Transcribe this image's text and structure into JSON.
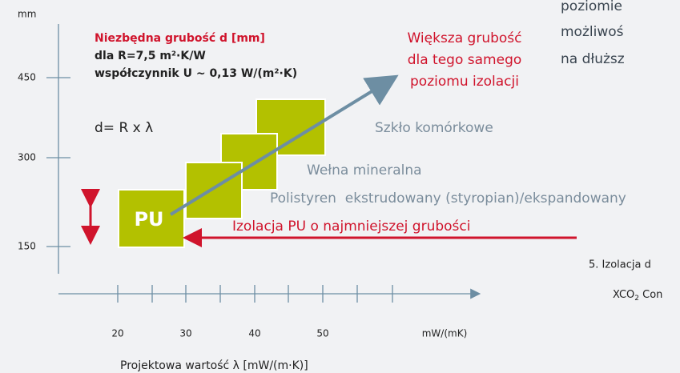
{
  "diagram": {
    "y_axis": {
      "unit": "mm",
      "ticks": [
        "450",
        "300",
        "150"
      ]
    },
    "x_axis": {
      "unit": "mW/(mK)",
      "ticks": [
        "20",
        "30",
        "40",
        "50"
      ],
      "title": "Projektowa wartość λ [mW/(m·K)]"
    },
    "info": {
      "heading": "Niezbędna grubość d [mm]",
      "line1": "dla R=7,5 m²·K/W",
      "line2": "współczynnik U ~ 0,13 W/(m²·K)",
      "formula": "d= R x λ"
    },
    "arrow_note": [
      "Większa grubość",
      "dla tego samego",
      "poziomu izolacji"
    ],
    "materials": [
      "Szkło komórkowe",
      "Wełna mineralna",
      "Polistyren  ekstrudowany (styropian)/ekspandowany"
    ],
    "pu_label": "PU",
    "pu_note": "Izolacja PU o najmniejszej grubości",
    "side_text": [
      "poziomie",
      "możliwoś",
      "na dłuższ"
    ],
    "caption": {
      "line1": "5. Izolacja d",
      "line2_a": "XCO",
      "line2_sub": "2",
      "line2_b": " Con"
    }
  }
}
